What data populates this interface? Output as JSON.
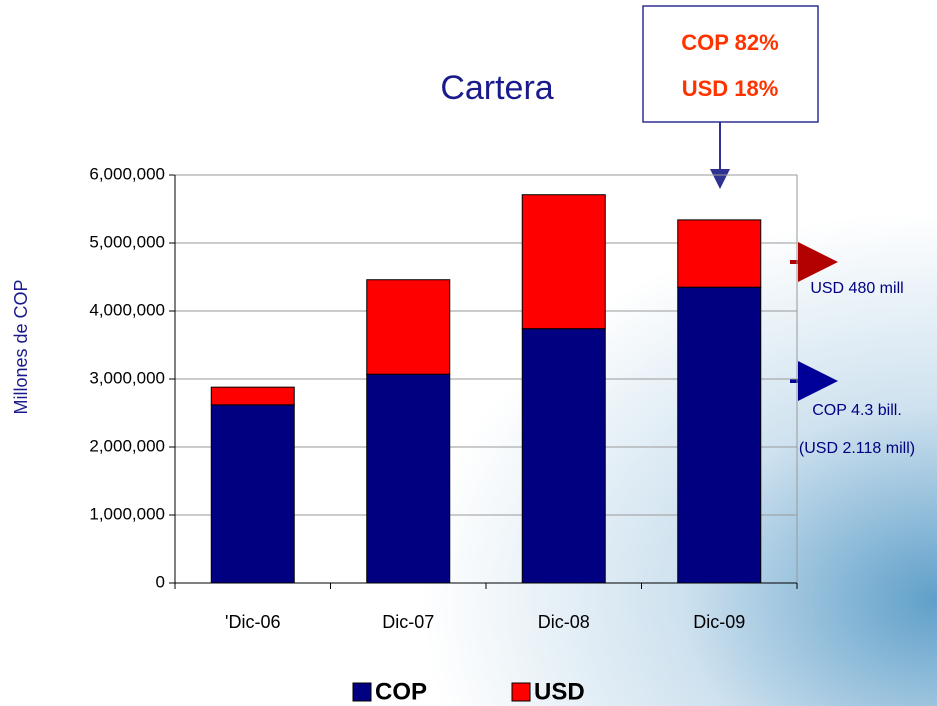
{
  "chart_data": {
    "type": "stacked_bar",
    "title": "Cartera",
    "y_label": "Millones de COP",
    "categories": [
      "'Dic-06",
      "Dic-07",
      "Dic-08",
      "Dic-09"
    ],
    "series": [
      {
        "name": "COP",
        "color": "#000080",
        "values": [
          2620000,
          3070000,
          3740000,
          4350000
        ]
      },
      {
        "name": "USD",
        "color": "#ff0000",
        "values": [
          260000,
          1390000,
          1970000,
          990000
        ]
      }
    ],
    "ylim": [
      0,
      6000000
    ],
    "yticks": [
      0,
      {
        "value": 1000000,
        "label": "1,000,000"
      },
      {
        "value": 2000000,
        "label": "2,000,000"
      },
      {
        "value": 3000000,
        "label": "3,000,000"
      },
      {
        "value": 4000000,
        "label": "4,000,000"
      },
      {
        "value": 5000000,
        "label": "5,000,000"
      },
      {
        "value": 6000000,
        "label": "6,000,000"
      }
    ],
    "grid": true,
    "annotations": {
      "box": [
        "COP 82%",
        "USD 18%"
      ],
      "usd_note": "USD 480 mill",
      "cop_note": [
        "COP 4.3 bill.",
        "(USD 2.118 mill)"
      ]
    }
  }
}
